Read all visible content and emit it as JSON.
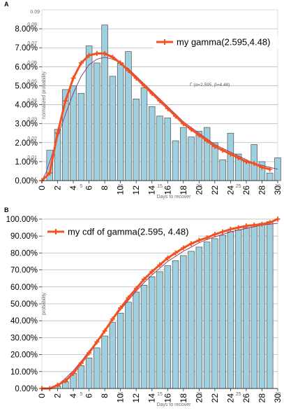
{
  "colors": {
    "bar_fill": "#9ed0e0",
    "bar_stroke": "#4f4f4f",
    "fit_line": "#f4511e",
    "overlay_line": "#8b2f6b",
    "grid": "#bdbdbd"
  },
  "chart_data": [
    {
      "type": "bar",
      "panel_label": "A",
      "xlabel": "Days to recover",
      "ylabel": "normalized probability",
      "faint_top_tick": "0.09",
      "annotation": "Γ (α=2.595, β=4.48)",
      "ylim": [
        0,
        0.09
      ],
      "xlim": [
        0,
        30
      ],
      "x_ticks": [
        0,
        2,
        4,
        6,
        8,
        10,
        12,
        14,
        16,
        18,
        20,
        22,
        24,
        26,
        28,
        30
      ],
      "y_ticks": [
        "0.00%",
        "1.00%",
        "2.00%",
        "3.00%",
        "4.00%",
        "5.00%",
        "6.00%",
        "7.00%",
        "8.00%"
      ],
      "y_tick_values": [
        0,
        0.01,
        0.02,
        0.03,
        0.04,
        0.05,
        0.06,
        0.07,
        0.08
      ],
      "faint_x_ticks": [
        "5",
        "10",
        "15",
        "20",
        "25",
        "30"
      ],
      "faint_y_ticks": [
        "0.01",
        "0.02",
        "0.03",
        "0.04",
        "0.05",
        "0.06",
        "0.07",
        "0.08"
      ],
      "grid": true,
      "legend_position": "top-right",
      "bars": {
        "x": [
          1,
          2,
          3,
          4,
          5,
          6,
          7,
          8,
          9,
          10,
          11,
          12,
          13,
          14,
          15,
          16,
          17,
          18,
          19,
          20,
          21,
          22,
          23,
          24,
          25,
          26,
          27,
          28,
          29,
          30
        ],
        "values": [
          0.016,
          0.027,
          0.048,
          0.05,
          0.046,
          0.071,
          0.062,
          0.082,
          0.055,
          0.062,
          0.068,
          0.043,
          0.049,
          0.039,
          0.034,
          0.033,
          0.021,
          0.028,
          0.023,
          0.026,
          0.028,
          0.02,
          0.011,
          0.025,
          0.014,
          0.01,
          0.019,
          0.01,
          0.004,
          0.012
        ]
      },
      "series": [
        {
          "name": "my gamma(2.595,4.48)",
          "x": [
            0,
            1,
            2,
            3,
            4,
            5,
            6,
            7,
            8,
            9,
            10,
            11,
            12,
            13,
            14,
            15,
            16,
            17,
            18,
            19,
            20,
            21,
            22,
            23,
            24,
            25,
            26,
            27,
            28,
            29
          ],
          "values": [
            0.0,
            0.004,
            0.025,
            0.042,
            0.054,
            0.062,
            0.066,
            0.067,
            0.067,
            0.065,
            0.062,
            0.058,
            0.054,
            0.05,
            0.046,
            0.042,
            0.038,
            0.034,
            0.03,
            0.027,
            0.024,
            0.021,
            0.018,
            0.016,
            0.014,
            0.012,
            0.01,
            0.009,
            0.007,
            0.006
          ]
        }
      ],
      "overlay_curve": {
        "x": [
          0,
          0.5,
          1,
          1.5,
          2,
          3,
          4,
          5,
          6,
          7,
          8,
          9,
          10,
          11,
          12,
          13,
          14,
          15,
          16,
          17,
          18,
          19,
          20,
          21,
          22,
          23,
          24,
          25,
          26,
          27,
          28,
          29,
          30
        ],
        "values": [
          0.0,
          0.004,
          0.01,
          0.016,
          0.023,
          0.035,
          0.046,
          0.055,
          0.061,
          0.064,
          0.065,
          0.064,
          0.062,
          0.059,
          0.055,
          0.051,
          0.047,
          0.043,
          0.039,
          0.035,
          0.031,
          0.028,
          0.025,
          0.022,
          0.019,
          0.017,
          0.015,
          0.013,
          0.011,
          0.009,
          0.008,
          0.007,
          0.006
        ]
      }
    },
    {
      "type": "bar",
      "panel_label": "B",
      "xlabel": "Days to recover",
      "ylabel": "probability",
      "ylim": [
        0,
        1.0
      ],
      "xlim": [
        0,
        30
      ],
      "x_ticks": [
        0,
        2,
        4,
        6,
        8,
        10,
        12,
        14,
        16,
        18,
        20,
        22,
        24,
        26,
        28,
        30
      ],
      "y_ticks": [
        "0.00%",
        "10.00%",
        "20.00%",
        "30.00%",
        "40.00%",
        "50.00%",
        "60.00%",
        "70.00%",
        "80.00%",
        "90.00%",
        "100.00%"
      ],
      "y_tick_values": [
        0,
        0.1,
        0.2,
        0.3,
        0.4,
        0.5,
        0.6,
        0.7,
        0.8,
        0.9,
        1.0
      ],
      "faint_x_ticks": [
        "5",
        "10",
        "15",
        "20",
        "25",
        "30"
      ],
      "grid": true,
      "legend_position": "top-left",
      "bars": {
        "x": [
          1,
          2,
          3,
          4,
          5,
          6,
          7,
          8,
          9,
          10,
          11,
          12,
          13,
          14,
          15,
          16,
          17,
          18,
          19,
          20,
          21,
          22,
          23,
          24,
          25,
          26,
          27,
          28,
          29
        ],
        "values": [
          0.0,
          0.015,
          0.04,
          0.09,
          0.135,
          0.18,
          0.24,
          0.31,
          0.39,
          0.445,
          0.51,
          0.57,
          0.61,
          0.66,
          0.69,
          0.725,
          0.755,
          0.785,
          0.81,
          0.835,
          0.865,
          0.885,
          0.905,
          0.925,
          0.935,
          0.95,
          0.965,
          0.975,
          0.985
        ]
      },
      "series": [
        {
          "name": "my cdf of gamma(2.595, 4.48)",
          "x": [
            0,
            1,
            2,
            3,
            4,
            5,
            6,
            7,
            8,
            9,
            10,
            11,
            12,
            13,
            14,
            15,
            16,
            17,
            18,
            19,
            20,
            21,
            22,
            23,
            24,
            25,
            26,
            27,
            28,
            29,
            30
          ],
          "values": [
            0.0,
            0.0,
            0.02,
            0.045,
            0.09,
            0.15,
            0.21,
            0.275,
            0.34,
            0.41,
            0.475,
            0.535,
            0.59,
            0.645,
            0.69,
            0.73,
            0.77,
            0.8,
            0.83,
            0.855,
            0.875,
            0.89,
            0.91,
            0.925,
            0.94,
            0.95,
            0.96,
            0.965,
            0.97,
            0.98,
            1.0
          ]
        }
      ],
      "overlay_curve": {
        "x": [
          0,
          1,
          2,
          3,
          4,
          5,
          6,
          7,
          8,
          9,
          10,
          11,
          12,
          13,
          14,
          15,
          16,
          17,
          18,
          19,
          20,
          21,
          22,
          23,
          24,
          25,
          26,
          27,
          28,
          29,
          30
        ],
        "values": [
          0.0,
          0.003,
          0.02,
          0.06,
          0.105,
          0.16,
          0.22,
          0.28,
          0.345,
          0.405,
          0.465,
          0.52,
          0.575,
          0.625,
          0.67,
          0.71,
          0.75,
          0.78,
          0.81,
          0.835,
          0.86,
          0.88,
          0.895,
          0.91,
          0.925,
          0.935,
          0.945,
          0.955,
          0.965,
          0.97,
          0.975
        ]
      }
    }
  ]
}
